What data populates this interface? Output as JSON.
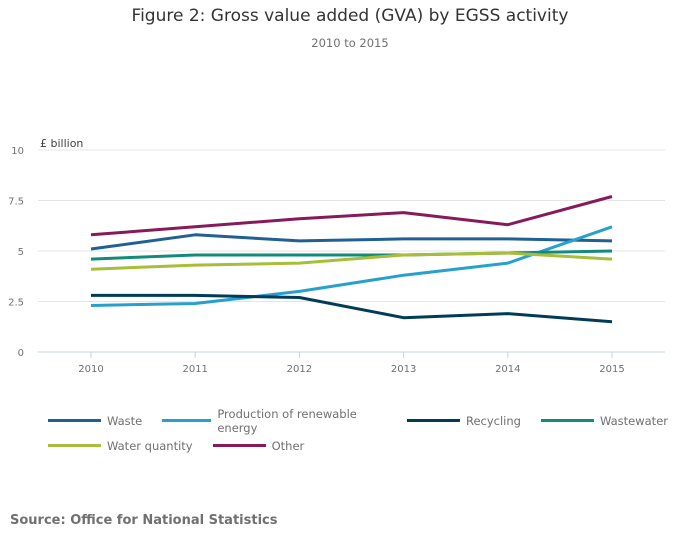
{
  "chart_data": {
    "type": "line",
    "title": "Figure 2: Gross value added (GVA) by EGSS activity",
    "subtitle": "2010 to 2015",
    "xlabel": "",
    "ylabel": "£ billion",
    "x": [
      "2010",
      "2011",
      "2012",
      "2013",
      "2014",
      "2015"
    ],
    "ylim": [
      0,
      10
    ],
    "yticks": [
      0,
      2.5,
      5,
      7.5,
      10
    ],
    "ytick_labels": [
      "0",
      "2.5",
      "5",
      "7.5",
      "10"
    ],
    "grid": true,
    "legend_position": "bottom",
    "series": [
      {
        "name": "Waste",
        "color": "#206095",
        "values": [
          5.1,
          5.8,
          5.5,
          5.6,
          5.6,
          5.5
        ]
      },
      {
        "name": "Production of renewable energy",
        "color": "#27a0cc",
        "values": [
          2.3,
          2.4,
          3.0,
          3.8,
          4.4,
          6.2
        ]
      },
      {
        "name": "Recycling",
        "color": "#003c57",
        "values": [
          2.8,
          2.8,
          2.7,
          1.7,
          1.9,
          1.5
        ]
      },
      {
        "name": "Wastewater",
        "color": "#118c7b",
        "values": [
          4.6,
          4.8,
          4.8,
          4.8,
          4.9,
          5.0
        ]
      },
      {
        "name": "Water quantity",
        "color": "#a8bd3a",
        "values": [
          4.1,
          4.3,
          4.4,
          4.8,
          4.9,
          4.6
        ]
      },
      {
        "name": "Other",
        "color": "#871a5b",
        "values": [
          5.8,
          6.2,
          6.6,
          6.9,
          6.3,
          7.7
        ]
      }
    ]
  },
  "legend_rows": [
    [
      0,
      1,
      2,
      3
    ],
    [
      4,
      5
    ]
  ],
  "source": "Source: Office for National Statistics"
}
